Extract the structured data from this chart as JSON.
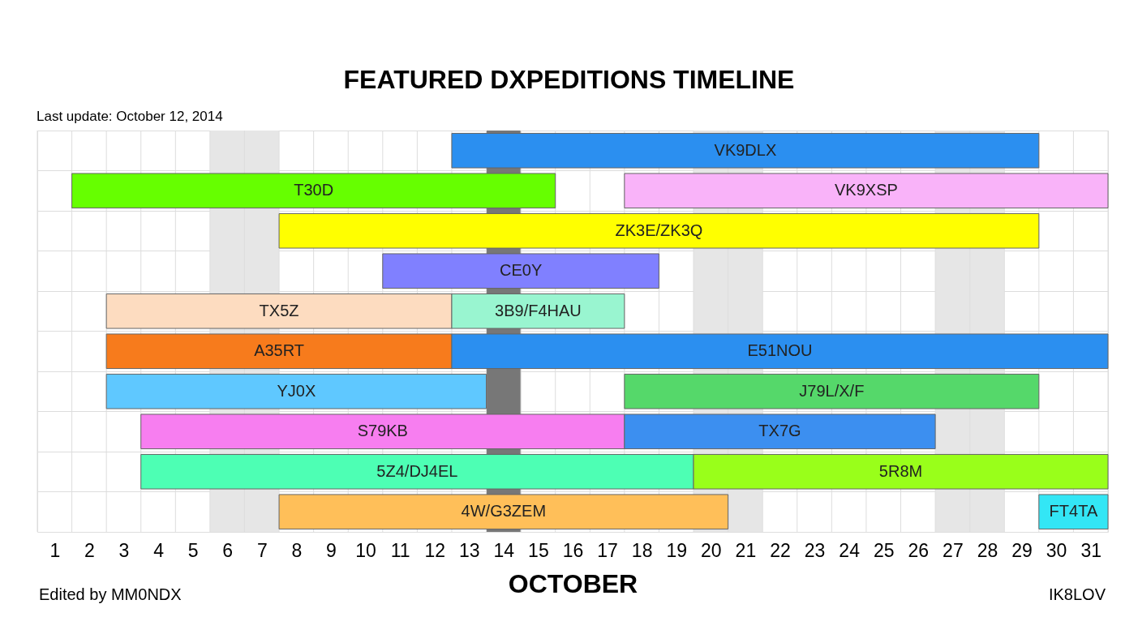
{
  "chart_data": {
    "type": "bar",
    "orientation": "horizontal",
    "title": "FEATURED DXPEDITIONS TIMELINE",
    "subtitle": "Last update: October 12, 2014",
    "xlabel": "OCTOBER",
    "annotations": [
      "Edited by MM0NDX",
      "IK8LOV"
    ],
    "categories": [
      null,
      null,
      null,
      null,
      null,
      null,
      null,
      null,
      null,
      null
    ],
    "xlim": [
      0.5,
      31.5
    ],
    "xticks": [
      {
        "value": 0.5,
        "label": null
      },
      1,
      {
        "value": 1.5,
        "label": null
      },
      2,
      {
        "value": 2.5,
        "label": null
      },
      3,
      {
        "value": 3.5,
        "label": null
      },
      4,
      {
        "value": 4.5,
        "label": null
      },
      5,
      {
        "value": 5.5,
        "label": null
      },
      6,
      {
        "value": 6.5,
        "label": null
      },
      7,
      {
        "value": 7.5,
        "label": null
      },
      8,
      {
        "value": 8.5,
        "label": null
      },
      9,
      {
        "value": 9.5,
        "label": null
      },
      10,
      {
        "value": 10.5,
        "label": null
      },
      11,
      {
        "value": 11.5,
        "label": null
      },
      12,
      {
        "value": 12.5,
        "label": null
      },
      13,
      {
        "value": 13.5,
        "label": null
      },
      14,
      {
        "value": 14.5,
        "label": null
      },
      15,
      {
        "value": 15.5,
        "label": null
      },
      16,
      {
        "value": 16.5,
        "label": null
      },
      17,
      {
        "value": 17.5,
        "label": null
      },
      18,
      {
        "value": 18.5,
        "label": null
      },
      19,
      {
        "value": 19.5,
        "label": null
      },
      20,
      {
        "value": 20.5,
        "label": null
      },
      21,
      {
        "value": 21.5,
        "label": null
      },
      22,
      {
        "value": 22.5,
        "label": null
      },
      23,
      {
        "value": 23.5,
        "label": null
      },
      24,
      {
        "value": 24.5,
        "label": null
      },
      25,
      {
        "value": 25.5,
        "label": null
      },
      26,
      {
        "value": 26.5,
        "label": null
      },
      27,
      {
        "value": 27.5,
        "label": null
      },
      28,
      {
        "value": 28.5,
        "label": null
      },
      29,
      {
        "value": 29.5,
        "label": null
      },
      30,
      {
        "value": 30.5,
        "label": null
      },
      31,
      {
        "value": 31.5,
        "label": null
      }
    ],
    "grid": true,
    "bands": [
      {
        "axis": "x",
        "from": 5.5,
        "to": 7.5,
        "color": "#e6e6e6"
      },
      {
        "axis": "x",
        "from": 19.5,
        "to": 21.5,
        "color": "#e6e6e6"
      },
      {
        "axis": "x",
        "from": 26.5,
        "to": 28.5,
        "color": "#e6e6e6"
      },
      {
        "axis": "x",
        "from": 13.5,
        "to": 14.5,
        "color": "#777777"
      }
    ],
    "series": [
      {
        "name": "VK9DLX",
        "color": "#2b8ff0",
        "values": [
          17,
          null,
          null,
          null,
          null,
          null,
          null,
          null,
          null,
          null
        ],
        "base": [
          12.5,
          null,
          null,
          null,
          null,
          null,
          null,
          null,
          null,
          null
        ]
      },
      {
        "name": "T30D",
        "color": "#66ff00",
        "values": [
          null,
          14,
          null,
          null,
          null,
          null,
          null,
          null,
          null,
          null
        ],
        "base": [
          null,
          1.5,
          null,
          null,
          null,
          null,
          null,
          null,
          null,
          null
        ]
      },
      {
        "name": "VK9XSP",
        "color": "#f9b3f9",
        "values": [
          null,
          14,
          null,
          null,
          null,
          null,
          null,
          null,
          null,
          null
        ],
        "base": [
          null,
          17.5,
          null,
          null,
          null,
          null,
          null,
          null,
          null,
          null
        ]
      },
      {
        "name": "ZK3E/ZK3Q",
        "color": "#ffff00",
        "values": [
          null,
          null,
          22,
          null,
          null,
          null,
          null,
          null,
          null,
          null
        ],
        "base": [
          null,
          null,
          7.5,
          null,
          null,
          null,
          null,
          null,
          null,
          null
        ]
      },
      {
        "name": "CE0Y",
        "color": "#8080ff",
        "values": [
          null,
          null,
          null,
          8,
          null,
          null,
          null,
          null,
          null,
          null
        ],
        "base": [
          null,
          null,
          null,
          10.5,
          null,
          null,
          null,
          null,
          null,
          null
        ]
      },
      {
        "name": "TX5Z",
        "color": "#fddcc0",
        "values": [
          null,
          null,
          null,
          null,
          10,
          null,
          null,
          null,
          null,
          null
        ],
        "base": [
          null,
          null,
          null,
          null,
          2.5,
          null,
          null,
          null,
          null,
          null
        ]
      },
      {
        "name": "3B9/F4HAU",
        "color": "#99f5d0",
        "values": [
          null,
          null,
          null,
          null,
          5,
          null,
          null,
          null,
          null,
          null
        ],
        "base": [
          null,
          null,
          null,
          null,
          12.5,
          null,
          null,
          null,
          null,
          null
        ]
      },
      {
        "name": "A35RT",
        "color": "#f77b1c",
        "values": [
          null,
          null,
          null,
          null,
          null,
          10,
          null,
          null,
          null,
          null
        ],
        "base": [
          null,
          null,
          null,
          null,
          null,
          2.5,
          null,
          null,
          null,
          null
        ]
      },
      {
        "name": "E51NOU",
        "color": "#2b8ff0",
        "values": [
          null,
          null,
          null,
          null,
          null,
          19,
          null,
          null,
          null,
          null
        ],
        "base": [
          null,
          null,
          null,
          null,
          null,
          12.5,
          null,
          null,
          null,
          null
        ]
      },
      {
        "name": "YJ0X",
        "color": "#5fc8ff",
        "values": [
          null,
          null,
          null,
          null,
          null,
          null,
          11,
          null,
          null,
          null
        ],
        "base": [
          null,
          null,
          null,
          null,
          null,
          null,
          2.5,
          null,
          null,
          null
        ]
      },
      {
        "name": "J79L/X/F",
        "color": "#55d86a",
        "values": [
          null,
          null,
          null,
          null,
          null,
          null,
          12,
          null,
          null,
          null
        ],
        "base": [
          null,
          null,
          null,
          null,
          null,
          null,
          17.5,
          null,
          null,
          null
        ]
      },
      {
        "name": "S79KB",
        "color": "#f77ef0",
        "values": [
          null,
          null,
          null,
          null,
          null,
          null,
          null,
          14,
          null,
          null
        ],
        "base": [
          null,
          null,
          null,
          null,
          null,
          null,
          null,
          3.5,
          null,
          null
        ]
      },
      {
        "name": "TX7G",
        "color": "#3c8ff0",
        "values": [
          null,
          null,
          null,
          null,
          null,
          null,
          null,
          9,
          null,
          null
        ],
        "base": [
          null,
          null,
          null,
          null,
          null,
          null,
          null,
          17.5,
          null,
          null
        ]
      },
      {
        "name": "5Z4/DJ4EL",
        "color": "#4dffb4",
        "values": [
          null,
          null,
          null,
          null,
          null,
          null,
          null,
          null,
          16,
          null
        ],
        "base": [
          null,
          null,
          null,
          null,
          null,
          null,
          null,
          null,
          3.5,
          null
        ]
      },
      {
        "name": "5R8M",
        "color": "#99ff1a",
        "values": [
          null,
          null,
          null,
          null,
          null,
          null,
          null,
          null,
          12,
          null
        ],
        "base": [
          null,
          null,
          null,
          null,
          null,
          null,
          null,
          null,
          19.5,
          null
        ]
      },
      {
        "name": "4W/G3ZEM",
        "color": "#ffbf59",
        "values": [
          null,
          null,
          null,
          null,
          null,
          null,
          null,
          null,
          null,
          13
        ],
        "base": [
          null,
          null,
          null,
          null,
          null,
          null,
          null,
          null,
          null,
          7.5
        ]
      },
      {
        "name": "FT4TA",
        "color": "#33e6f5",
        "values": [
          null,
          null,
          null,
          null,
          null,
          null,
          null,
          null,
          null,
          2
        ],
        "base": [
          null,
          null,
          null,
          null,
          null,
          null,
          null,
          null,
          null,
          29.5
        ]
      }
    ]
  }
}
